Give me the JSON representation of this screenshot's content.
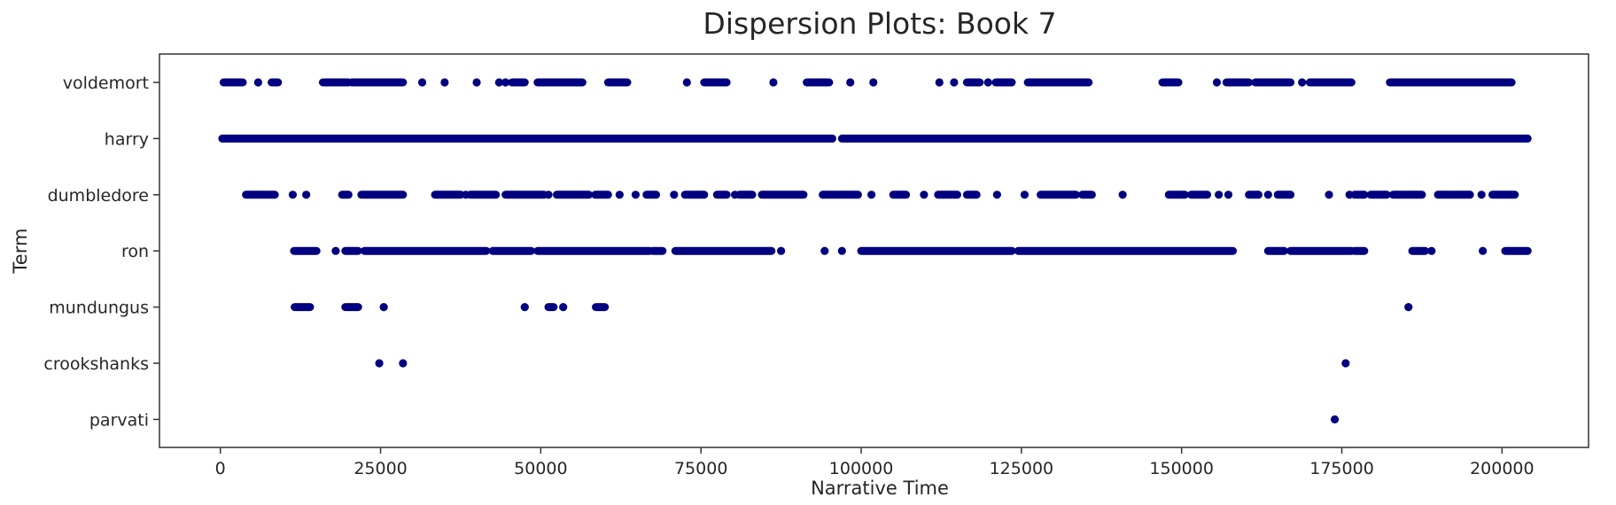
{
  "chart_data": {
    "type": "scatter",
    "title": "Dispersion Plots: Book 7",
    "xlabel": "Narrative Time",
    "ylabel": "Term",
    "xlim": [
      -9500,
      213500
    ],
    "xticks": [
      0,
      25000,
      50000,
      75000,
      100000,
      125000,
      150000,
      175000,
      200000
    ],
    "xtick_labels": [
      "0",
      "25000",
      "50000",
      "75000",
      "100000",
      "125000",
      "150000",
      "175000",
      "200000"
    ],
    "terms": [
      "voldemort",
      "harry",
      "dumbledore",
      "ron",
      "mundungus",
      "crookshanks",
      "parvati"
    ],
    "grid": false,
    "marker_color": "#000080",
    "series": [
      {
        "term": "voldemort",
        "segments": [
          [
            500,
            3500
          ],
          [
            8000,
            9000
          ],
          [
            16000,
            20000
          ],
          [
            20500,
            28500
          ],
          [
            45500,
            47500
          ],
          [
            49500,
            56500
          ],
          [
            60500,
            63500
          ],
          [
            75500,
            79000
          ],
          [
            91500,
            95000
          ],
          [
            116500,
            118500
          ],
          [
            121000,
            123500
          ],
          [
            126000,
            135500
          ],
          [
            147000,
            149500
          ],
          [
            157000,
            160500
          ],
          [
            161500,
            167000
          ],
          [
            170000,
            176500
          ],
          [
            182500,
            201500
          ]
        ],
        "points": [
          5900,
          31500,
          35000,
          40000,
          43500,
          44500,
          72800,
          86300,
          98300,
          101900,
          112200,
          114500,
          119800,
          155500,
          168800
        ]
      },
      {
        "term": "harry",
        "segments": [
          [
            300,
            95500
          ],
          [
            97000,
            204000
          ]
        ],
        "points": []
      },
      {
        "term": "dumbledore",
        "segments": [
          [
            4000,
            8500
          ],
          [
            19000,
            20000
          ],
          [
            22000,
            28500
          ],
          [
            33500,
            37500
          ],
          [
            39000,
            43000
          ],
          [
            44500,
            50500
          ],
          [
            52500,
            57500
          ],
          [
            58500,
            60500
          ],
          [
            66500,
            68000
          ],
          [
            72500,
            75500
          ],
          [
            77500,
            79000
          ],
          [
            81000,
            83000
          ],
          [
            84500,
            91000
          ],
          [
            94000,
            99500
          ],
          [
            105000,
            107000
          ],
          [
            112000,
            115000
          ],
          [
            116500,
            118000
          ],
          [
            128000,
            133500
          ],
          [
            134500,
            136000
          ],
          [
            148000,
            150500
          ],
          [
            151500,
            154000
          ],
          [
            160500,
            162000
          ],
          [
            165000,
            167000
          ],
          [
            177000,
            178500
          ],
          [
            179500,
            182000
          ],
          [
            183000,
            187500
          ],
          [
            190000,
            195000
          ],
          [
            198500,
            202000
          ]
        ],
        "points": [
          11300,
          13400,
          38300,
          51200,
          62300,
          64800,
          70800,
          80300,
          101600,
          109800,
          121200,
          125500,
          140800,
          155800,
          157300,
          163500,
          173000,
          176200,
          196800
        ]
      },
      {
        "term": "ron",
        "segments": [
          [
            11500,
            15000
          ],
          [
            19500,
            21500
          ],
          [
            22500,
            41500
          ],
          [
            42500,
            48500
          ],
          [
            49500,
            67000
          ],
          [
            67500,
            69000
          ],
          [
            71000,
            86000
          ],
          [
            100000,
            123500
          ],
          [
            124500,
            158000
          ],
          [
            163500,
            166000
          ],
          [
            167000,
            176500
          ],
          [
            177000,
            178500
          ],
          [
            186000,
            188000
          ],
          [
            200500,
            204000
          ]
        ],
        "points": [
          18000,
          87500,
          94300,
          97000,
          189000,
          197000
        ]
      },
      {
        "term": "mundungus",
        "segments": [
          [
            11600,
            14000
          ],
          [
            19500,
            21500
          ],
          [
            51200,
            52000
          ],
          [
            58600,
            60000
          ]
        ],
        "points": [
          25500,
          47500,
          53500,
          185400
        ]
      },
      {
        "term": "crookshanks",
        "segments": [],
        "points": [
          24800,
          28500,
          175600
        ]
      },
      {
        "term": "parvati",
        "segments": [],
        "points": [
          173900
        ]
      }
    ]
  }
}
